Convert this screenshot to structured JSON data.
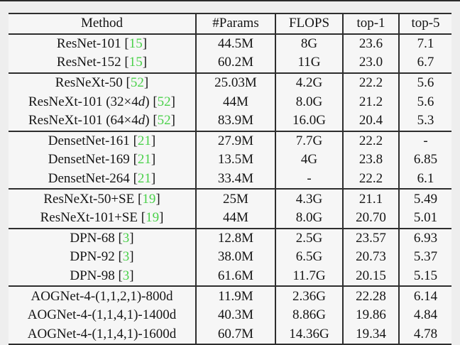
{
  "figure": {
    "type": "table",
    "citation_color": "#4ad14a",
    "rule_color": "#2e2e2e"
  },
  "table": {
    "columns": [
      "Method",
      "#Params",
      "FLOPS",
      "top-1",
      "top-5"
    ],
    "groups": [
      {
        "rows": [
          {
            "method": "ResNet-101",
            "cite": "15",
            "params": "44.5M",
            "flops": "8G",
            "top1": "23.6",
            "top5": "7.1"
          },
          {
            "method": "ResNet-152",
            "cite": "15",
            "params": "60.2M",
            "flops": "11G",
            "top1": "23.0",
            "top5": "6.7"
          }
        ]
      },
      {
        "rows": [
          {
            "method": "ResNeXt-50",
            "cite": "52",
            "params": "25.03M",
            "flops": "4.2G",
            "top1": "22.2",
            "top5": "5.6"
          },
          {
            "method": "ResNeXt-101 (32×4d)",
            "cite": "52",
            "params": "44M",
            "flops": "8.0G",
            "top1": "21.2",
            "top5": "5.6"
          },
          {
            "method": "ResNeXt-101 (64×4d)",
            "cite": "52",
            "params": "83.9M",
            "flops": "16.0G",
            "top1": "20.4",
            "top5": "5.3"
          }
        ]
      },
      {
        "rows": [
          {
            "method": "DensetNet-161",
            "cite": "21",
            "params": "27.9M",
            "flops": "7.7G",
            "top1": "22.2",
            "top5": "-"
          },
          {
            "method": "DensetNet-169",
            "cite": "21",
            "params": "13.5M",
            "flops": "4G",
            "top1": "23.8",
            "top5": "6.85"
          },
          {
            "method": "DensetNet-264",
            "cite": "21",
            "params": "33.4M",
            "flops": "-",
            "top1": "22.2",
            "top5": "6.1"
          }
        ]
      },
      {
        "rows": [
          {
            "method": "ResNeXt-50+SE",
            "cite": "19",
            "params": "25M",
            "flops": "4.3G",
            "top1": "21.1",
            "top5": "5.49"
          },
          {
            "method": "ResNeXt-101+SE",
            "cite": "19",
            "params": "44M",
            "flops": "8.0G",
            "top1": "20.70",
            "top5": "5.01"
          }
        ]
      },
      {
        "rows": [
          {
            "method": "DPN-68",
            "cite": "3",
            "params": "12.8M",
            "flops": "2.5G",
            "top1": "23.57",
            "top5": "6.93"
          },
          {
            "method": "DPN-92",
            "cite": "3",
            "params": "38.0M",
            "flops": "6.5G",
            "top1": "20.73",
            "top5": "5.37"
          },
          {
            "method": "DPN-98",
            "cite": "3",
            "params": "61.6M",
            "flops": "11.7G",
            "top1": "20.15",
            "top5": "5.15"
          }
        ]
      },
      {
        "rows": [
          {
            "method": "AOGNet-4-(1,1,2,1)-800d",
            "cite": null,
            "params": "11.9M",
            "flops": "2.36G",
            "top1": "22.28",
            "top5": "6.14"
          },
          {
            "method": "AOGNet-4-(1,1,4,1)-1400d",
            "cite": null,
            "params": "40.3M",
            "flops": "8.86G",
            "top1": "19.86",
            "top5": "4.84"
          },
          {
            "method": "AOGNet-4-(1,1,4,1)-1600d",
            "cite": null,
            "params": "60.7M",
            "flops": "14.36G",
            "top1": "19.34",
            "top5": "4.78"
          }
        ]
      }
    ]
  }
}
